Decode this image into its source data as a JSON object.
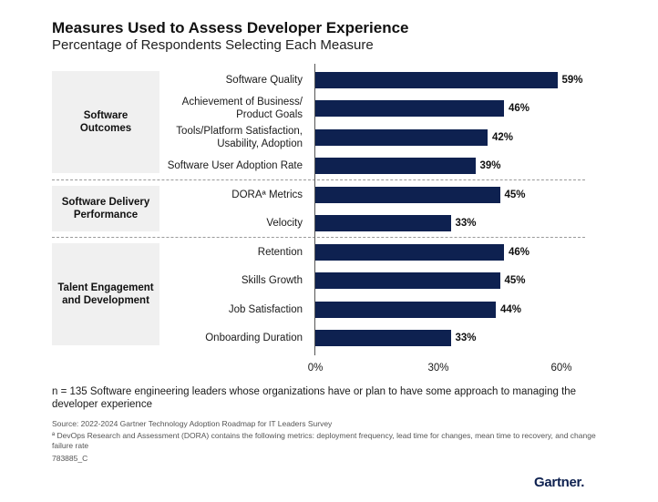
{
  "title": "Measures Used to Assess Developer Experience",
  "subtitle": "Percentage of Respondents Selecting Each Measure",
  "groups": [
    "Software\nOutcomes",
    "Software Delivery\nPerformance",
    "Talent Engagement\nand Development"
  ],
  "chart_data": {
    "type": "bar",
    "orientation": "horizontal",
    "title": "Measures Used to Assess Developer Experience",
    "subtitle": "Percentage of Respondents Selecting Each Measure",
    "categories": [
      "Software Quality",
      "Achievement of Business/\nProduct Goals",
      "Tools/Platform Satisfaction,\nUsability, Adoption",
      "Software User Adoption Rate",
      "DORAª Metrics",
      "Velocity",
      "Retention",
      "Skills Growth",
      "Job Satisfaction",
      "Onboarding Duration"
    ],
    "category_groups": [
      0,
      0,
      0,
      0,
      1,
      1,
      2,
      2,
      2,
      2
    ],
    "values": [
      59,
      46,
      42,
      39,
      45,
      33,
      46,
      45,
      44,
      33
    ],
    "value_labels": [
      "59%",
      "46%",
      "42%",
      "39%",
      "45%",
      "33%",
      "46%",
      "45%",
      "44%",
      "33%"
    ],
    "xlim": [
      0,
      60
    ],
    "xticks": [
      0,
      30,
      60
    ],
    "xtick_labels": [
      "0%",
      "30%",
      "60%"
    ],
    "xlabel": "",
    "ylabel": "",
    "bar_color": "#0e2150"
  },
  "note": "n = 135 Software engineering leaders whose organizations have or plan to have some approach to managing the developer experience",
  "source": "Source: 2022-2024 Gartner Technology Adoption Roadmap for IT Leaders Survey",
  "footnote": "ª DevOps Research and Assessment (DORA) contains the following metrics: deployment frequency, lead time for changes, mean time to recovery, and change failure rate",
  "code": "783885_C",
  "logo": "Gartner."
}
